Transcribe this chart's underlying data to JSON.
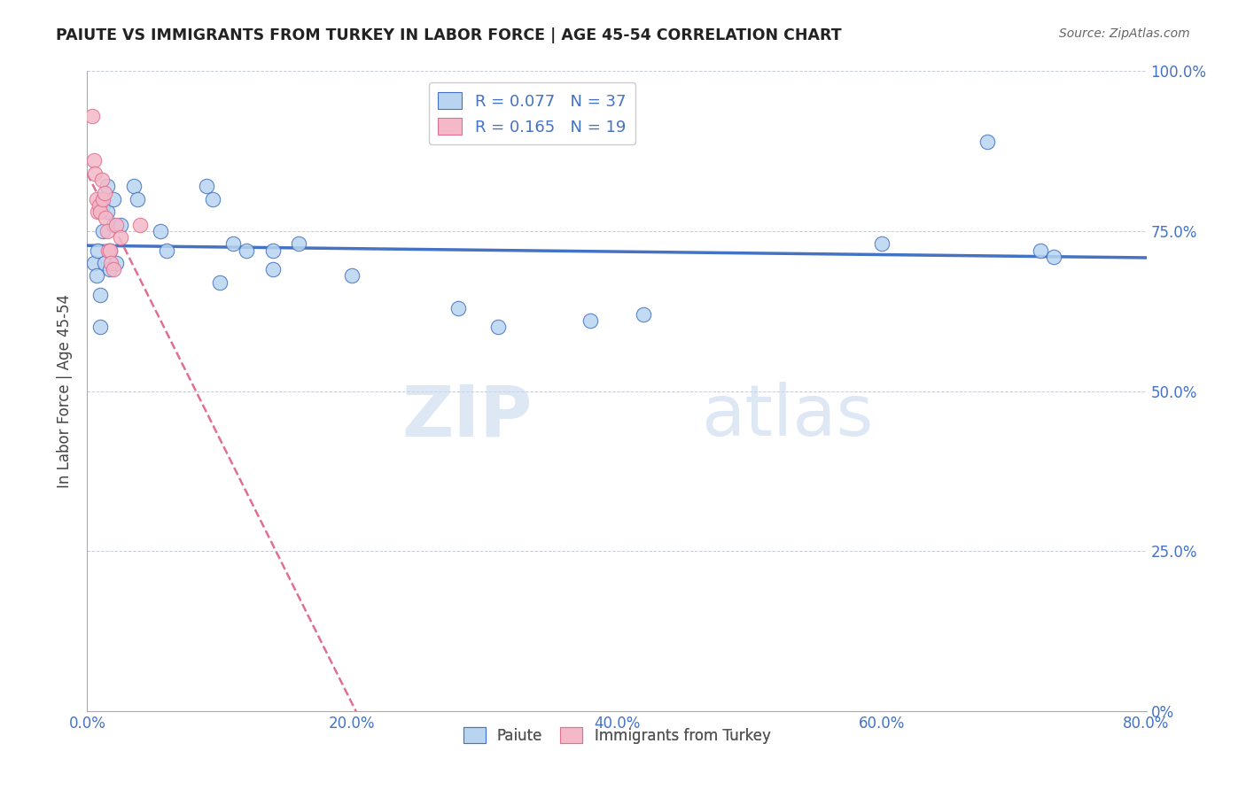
{
  "title": "PAIUTE VS IMMIGRANTS FROM TURKEY IN LABOR FORCE | AGE 45-54 CORRELATION CHART",
  "source": "Source: ZipAtlas.com",
  "ylabel": "In Labor Force | Age 45-54",
  "xlim": [
    0.0,
    0.8
  ],
  "ylim": [
    0.0,
    1.0
  ],
  "blue_r": 0.077,
  "blue_n": 37,
  "pink_r": 0.165,
  "pink_n": 19,
  "watermark_zip": "ZIP",
  "watermark_atlas": "atlas",
  "blue_fill": "#b8d4f0",
  "blue_edge": "#4472c4",
  "pink_fill": "#f4b8c8",
  "pink_edge": "#e07090",
  "blue_line": "#4472c4",
  "pink_line": "#e07090",
  "axis_tick_color": "#4472c4",
  "grid_color": "#c8ccd8",
  "title_color": "#222222",
  "source_color": "#666666",
  "legend_text_color": "#4472c4",
  "paiute_x": [
    0.005,
    0.007,
    0.008,
    0.01,
    0.01,
    0.012,
    0.012,
    0.013,
    0.015,
    0.015,
    0.017,
    0.017,
    0.02,
    0.02,
    0.022,
    0.025,
    0.035,
    0.038,
    0.055,
    0.06,
    0.09,
    0.095,
    0.1,
    0.11,
    0.12,
    0.14,
    0.14,
    0.16,
    0.2,
    0.28,
    0.31,
    0.38,
    0.42,
    0.6,
    0.68,
    0.72,
    0.73
  ],
  "paiute_y": [
    0.7,
    0.68,
    0.72,
    0.65,
    0.6,
    0.79,
    0.75,
    0.7,
    0.82,
    0.78,
    0.72,
    0.69,
    0.8,
    0.76,
    0.7,
    0.76,
    0.82,
    0.8,
    0.75,
    0.72,
    0.82,
    0.8,
    0.67,
    0.73,
    0.72,
    0.72,
    0.69,
    0.73,
    0.68,
    0.63,
    0.6,
    0.61,
    0.62,
    0.73,
    0.89,
    0.72,
    0.71
  ],
  "turkey_x": [
    0.004,
    0.005,
    0.006,
    0.007,
    0.008,
    0.009,
    0.01,
    0.011,
    0.012,
    0.013,
    0.014,
    0.015,
    0.016,
    0.017,
    0.018,
    0.02,
    0.022,
    0.025,
    0.04
  ],
  "turkey_y": [
    0.93,
    0.86,
    0.84,
    0.8,
    0.78,
    0.79,
    0.78,
    0.83,
    0.8,
    0.81,
    0.77,
    0.75,
    0.72,
    0.72,
    0.7,
    0.69,
    0.76,
    0.74,
    0.76
  ]
}
